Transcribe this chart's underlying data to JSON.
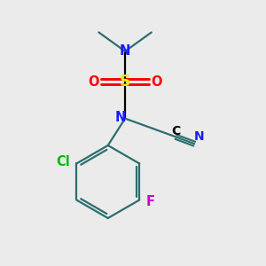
{
  "bg_color": "#ebebeb",
  "atom_colors": {
    "C": "#000000",
    "N": "#1a1aff",
    "S": "#e6e600",
    "O": "#ff0000",
    "Cl": "#00bb00",
    "F": "#cc00cc"
  },
  "ring_color": "#2d6e6e",
  "bond_color": "#2d6e6e",
  "lw": 1.6
}
